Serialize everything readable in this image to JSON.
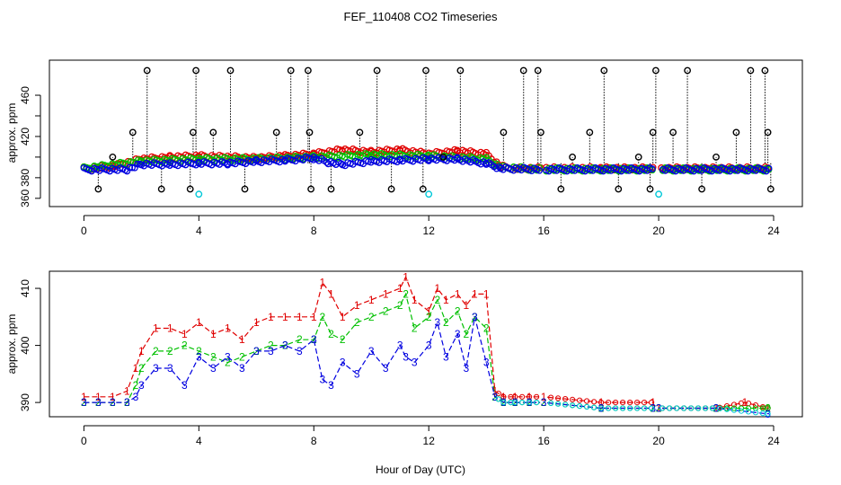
{
  "figure": {
    "title": "FEF_110408  CO2 Timeseries",
    "xlabel": "Hour of Day (UTC)",
    "colors": {
      "series1": "#e00000",
      "series2": "#00c000",
      "series3": "#0000e0",
      "black": "#000000",
      "cyan": "#00c8d8"
    }
  },
  "chart_data": [
    {
      "type": "scatter",
      "name": "top-panel",
      "title": "",
      "xlabel": "",
      "ylabel": "approx. ppm",
      "xlim": [
        -1.2,
        25
      ],
      "ylim": [
        352,
        494
      ],
      "xticks": [
        0,
        4,
        8,
        12,
        16,
        20,
        24
      ],
      "yticks": [
        360,
        380,
        400,
        420,
        440,
        460
      ],
      "ytick_labels": [
        360,
        380,
        420,
        460
      ],
      "marker": "circle",
      "grid": false,
      "legend": "none",
      "series": [
        {
          "color": "series1",
          "x": [
            0.0,
            1.0,
            2.0,
            3.0,
            4.0,
            5.0,
            6.0,
            7.0,
            8.0,
            9.0,
            10.0,
            11.0,
            12.0,
            13.0,
            14.0,
            14.5,
            15.0,
            16.0,
            18.0,
            19.8,
            20.0,
            22.0,
            24.0
          ],
          "y": [
            389,
            391,
            398,
            400,
            401,
            400,
            399,
            401,
            403,
            407,
            405,
            407,
            403,
            406,
            403,
            391,
            389,
            389,
            389,
            389,
            389,
            389,
            389
          ]
        },
        {
          "color": "series2",
          "x": [
            0.0,
            2.0,
            4.0,
            6.0,
            8.0,
            10.0,
            12.0,
            14.0,
            14.5,
            16.0,
            24.0
          ],
          "y": [
            389,
            396,
            398,
            398,
            400,
            402,
            401,
            398,
            390,
            388,
            388
          ]
        },
        {
          "color": "series3",
          "x": [
            0.0,
            1.5,
            2.0,
            3.0,
            4.0,
            5.0,
            6.0,
            7.0,
            8.0,
            8.5,
            9.0,
            10.0,
            11.0,
            12.0,
            13.0,
            14.0,
            14.5,
            16.0,
            24.0
          ],
          "y": [
            388,
            388,
            393,
            393,
            394,
            394,
            396,
            397,
            399,
            395,
            393,
            396,
            397,
            398,
            398,
            394,
            389,
            388,
            388
          ]
        },
        {
          "color": "black",
          "x": [
            0.5,
            1.0,
            1.7,
            2.2,
            2.7,
            3.7,
            3.8,
            3.9,
            4.5,
            5.1,
            5.6,
            6.7,
            7.2,
            7.8,
            7.85,
            7.9,
            8.6,
            9.6,
            10.2,
            10.7,
            11.8,
            11.9,
            12.5,
            13.1,
            14.6,
            15.3,
            15.8,
            15.9,
            16.6,
            17.0,
            17.6,
            18.1,
            18.6,
            19.3,
            19.7,
            19.8,
            19.9,
            20.5,
            21.0,
            21.5,
            22.0,
            22.7,
            23.2,
            23.7,
            23.8,
            23.9
          ],
          "y": [
            369,
            400,
            424,
            484,
            369,
            369,
            424,
            484,
            424,
            484,
            369,
            424,
            484,
            484,
            424,
            369,
            369,
            424,
            484,
            369,
            369,
            484,
            400,
            484,
            424,
            484,
            484,
            424,
            369,
            400,
            424,
            484,
            369,
            400,
            369,
            424,
            484,
            424,
            484,
            369,
            400,
            424,
            484,
            484,
            424,
            369
          ]
        },
        {
          "color": "cyan",
          "x": [
            4.0,
            12.0,
            20.0
          ],
          "y": [
            364,
            364,
            364
          ]
        }
      ]
    },
    {
      "type": "line",
      "name": "bottom-panel",
      "title": "",
      "xlabel": "Hour of Day (UTC)",
      "ylabel": "approx. ppm",
      "xlim": [
        -1.2,
        25
      ],
      "ylim": [
        387.5,
        413
      ],
      "xticks": [
        0,
        4,
        8,
        12,
        16,
        20,
        24
      ],
      "yticks": [
        390,
        400,
        410
      ],
      "grid": false,
      "legend": "none",
      "series": [
        {
          "label": "1",
          "color": "series1",
          "x": [
            0.0,
            0.5,
            1.0,
            1.5,
            1.8,
            2.0,
            2.5,
            3.0,
            3.5,
            4.0,
            4.5,
            5.0,
            5.5,
            6.0,
            6.5,
            7.0,
            7.5,
            8.0,
            8.3,
            8.6,
            9.0,
            9.5,
            10.0,
            10.5,
            11.0,
            11.2,
            11.5,
            12.0,
            12.3,
            12.6,
            13.0,
            13.3,
            13.6,
            14.0,
            14.3,
            14.6,
            15.0,
            15.5,
            16.0,
            18.0,
            19.8,
            20.0,
            22.0,
            23.0,
            23.8
          ],
          "y": [
            391,
            391,
            391,
            392,
            396,
            399,
            403,
            403,
            402,
            404,
            402,
            403,
            401,
            404,
            405,
            405,
            405,
            405,
            411,
            409,
            405,
            407,
            408,
            409,
            410,
            412,
            408,
            406,
            410,
            408,
            409,
            407,
            409,
            409,
            392,
            391,
            391,
            391,
            391,
            390,
            390,
            389,
            389,
            390,
            389
          ]
        },
        {
          "label": "2",
          "color": "series2",
          "x": [
            0.0,
            0.5,
            1.0,
            1.5,
            1.8,
            2.0,
            2.5,
            3.0,
            3.5,
            4.0,
            4.5,
            5.0,
            5.5,
            6.0,
            6.5,
            7.0,
            7.5,
            8.0,
            8.3,
            8.6,
            9.0,
            9.5,
            10.0,
            10.5,
            11.0,
            11.2,
            11.5,
            12.0,
            12.3,
            12.6,
            13.0,
            13.3,
            13.6,
            14.0,
            14.3,
            14.6,
            15.0,
            15.5,
            16.0,
            18.0,
            19.8,
            20.0,
            22.0,
            23.8
          ],
          "y": [
            390,
            390,
            390,
            390,
            393,
            396,
            399,
            399,
            400,
            399,
            398,
            397,
            398,
            399,
            400,
            400,
            401,
            401,
            405,
            402,
            401,
            404,
            405,
            406,
            407,
            409,
            403,
            405,
            408,
            404,
            406,
            402,
            405,
            403,
            391,
            390,
            390,
            390,
            390,
            389,
            389,
            389,
            389,
            389
          ]
        },
        {
          "label": "3",
          "color": "series3",
          "x": [
            0.0,
            0.5,
            1.0,
            1.5,
            1.8,
            2.0,
            2.5,
            3.0,
            3.5,
            4.0,
            4.5,
            5.0,
            5.5,
            6.0,
            6.5,
            7.0,
            7.5,
            8.0,
            8.3,
            8.6,
            9.0,
            9.5,
            10.0,
            10.5,
            11.0,
            11.2,
            11.5,
            12.0,
            12.3,
            12.6,
            13.0,
            13.3,
            13.6,
            14.0,
            14.3,
            14.6,
            15.0,
            15.5,
            16.0,
            18.0,
            19.8,
            20.0,
            22.0,
            23.8
          ],
          "y": [
            390,
            390,
            390,
            390,
            391,
            393,
            396,
            396,
            393,
            398,
            396,
            398,
            396,
            399,
            399,
            400,
            399,
            401,
            394,
            393,
            397,
            395,
            399,
            396,
            400,
            398,
            397,
            400,
            404,
            398,
            402,
            396,
            405,
            397,
            391,
            390,
            390,
            390,
            390,
            389,
            389,
            389,
            389,
            388
          ]
        }
      ]
    }
  ]
}
